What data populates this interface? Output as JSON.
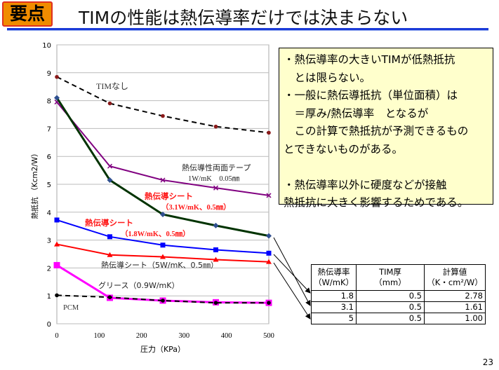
{
  "header": {
    "badge": "要点",
    "title": "TIMの性能は熱伝導率だけでは決まらない"
  },
  "note": {
    "lines": [
      "・熱伝導率の大きいTIMが低熱抵抗",
      "　とは限らない。",
      "・一般に熱伝導抵抗（単位面積）は",
      "　＝厚み/熱伝導率　となるが",
      "　この計算で熱抵抗が予測できるもの",
      "とできないものがある。",
      "",
      "・熱伝導率以外に硬度などが接触",
      "熱抵抗に大きく影響するためである。"
    ]
  },
  "table": {
    "headers": [
      [
        "熱伝導率",
        "（W/mK）"
      ],
      [
        "TIM厚",
        "（mm）"
      ],
      [
        "計算値",
        "（K・cm²/W）"
      ]
    ],
    "rows": [
      [
        "1.8",
        "0.5",
        "2.78"
      ],
      [
        "3.1",
        "0.5",
        "1.61"
      ],
      [
        "5",
        "0.5",
        "1.00"
      ]
    ]
  },
  "page_number": "23",
  "chart_data": {
    "type": "line",
    "xlabel": "圧力（KPa）",
    "ylabel": "熱抵抗 （Kcm2/W）",
    "xlim": [
      0,
      500
    ],
    "ylim": [
      0,
      10
    ],
    "xticks": [
      "0",
      "100",
      "200",
      "300",
      "400",
      "500"
    ],
    "yticks": [
      "0",
      "1",
      "2",
      "3",
      "4",
      "5",
      "6",
      "7",
      "8",
      "9",
      "10"
    ],
    "grid": "horizontal",
    "x": [
      0,
      125,
      250,
      375,
      500
    ],
    "series": [
      {
        "name": "TIMなし",
        "values": [
          8.85,
          7.9,
          7.45,
          7.07,
          6.85
        ],
        "color": "#000000",
        "marker_color": "#8b1a1a",
        "dash": true,
        "marker": "circle"
      },
      {
        "name": "熱伝導性両面テープ",
        "sub": "1W/mK　0.05㎜",
        "values": [
          7.95,
          5.65,
          5.15,
          4.87,
          4.6
        ],
        "color": "#800080",
        "marker": "x"
      },
      {
        "name": "熱伝導シート",
        "sub": "（3.1W/mK、0.5㎜）",
        "values": [
          8.1,
          5.15,
          3.92,
          3.52,
          3.15
        ],
        "color": "#003300",
        "marker_color": "#2f4f8f",
        "marker": "diamond"
      },
      {
        "name": "熱伝導シート",
        "sub": "（1.8W/mK、0.5㎜）",
        "values": [
          3.72,
          3.12,
          2.82,
          2.65,
          2.53
        ],
        "color": "#0000ff",
        "marker": "square"
      },
      {
        "name": "熱伝導シート（5W/mK、0.5㎜）",
        "values": [
          2.85,
          2.47,
          2.4,
          2.3,
          2.22
        ],
        "color": "#ff0000",
        "marker": "triangle"
      },
      {
        "name": "グリース（0.9W/mK）",
        "values": [
          2.1,
          0.93,
          0.83,
          0.77,
          0.75
        ],
        "color": "#ff00ff",
        "marker": "square"
      },
      {
        "name": "PCM",
        "values": [
          1.02,
          0.95,
          0.83,
          0.75,
          0.75
        ],
        "color": "#000000",
        "dash": true,
        "marker": "circle"
      }
    ]
  }
}
